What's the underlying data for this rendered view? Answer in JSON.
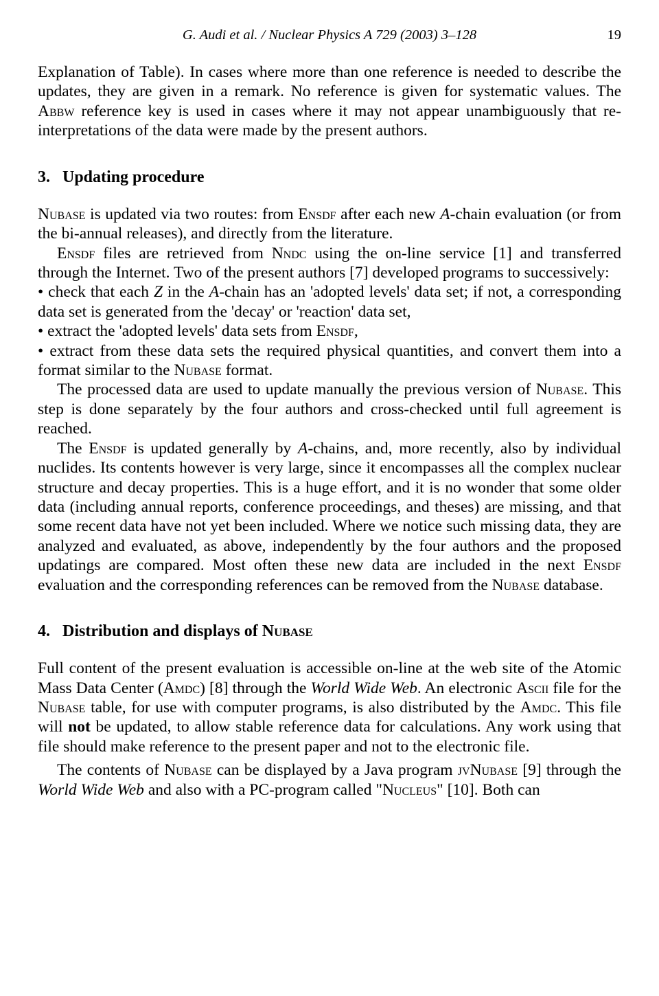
{
  "header": {
    "citation": "G. Audi et al. / Nuclear Physics A 729 (2003) 3–128",
    "page_number": "19"
  },
  "para1_a": "Explanation of Table). In cases where more than one reference is needed to describe the updates, they are given in a remark. No reference is given for systematic values. The ",
  "para1_abbw": "Abbw",
  "para1_b": " reference key is used in cases where it may not appear unambiguously that re-interpretations of the data were made by the present authors.",
  "section3": {
    "number": "3.",
    "title": "Updating procedure"
  },
  "p3a_nubase": "Nubase",
  "p3a_1": " is updated via two routes: from ",
  "p3a_ensdf": "Ensdf",
  "p3a_2": " after each new ",
  "p3a_A": "A",
  "p3a_3": "-chain evaluation (or from the bi-annual releases), and directly from the literature.",
  "p3b_ensdf": "Ensdf",
  "p3b_1": " files are retrieved from ",
  "p3b_nndc": "Nndc",
  "p3b_2": " using the on-line service [1] and transferred through the Internet. Two of the present authors [7] developed programs to successively:",
  "bullet1_a": "• check that each ",
  "bullet1_Z": "Z",
  "bullet1_b": " in the ",
  "bullet1_A": "A",
  "bullet1_c": "-chain has an 'adopted levels' data set; if not, a corresponding data set is generated from the 'decay' or 'reaction' data set,",
  "bullet2_a": "• extract the 'adopted levels' data sets from ",
  "bullet2_ensdf": "Ensdf",
  "bullet2_b": ",",
  "bullet3_a": "• extract from these data sets the required physical quantities, and convert them into a format similar to the ",
  "bullet3_nubase": "Nubase",
  "bullet3_b": " format.",
  "p3c_1": "The processed data are used to update manually the previous version of ",
  "p3c_nubase": "Nubase",
  "p3c_2": ". This step is done separately by the four authors and cross-checked until full agreement is reached.",
  "p3d_1": "The ",
  "p3d_ensdf": "Ensdf",
  "p3d_2": " is updated generally by ",
  "p3d_A": "A",
  "p3d_3": "-chains, and, more recently, also by individual nuclides. Its contents however is very large, since it encompasses all the complex nuclear structure and decay properties. This is a huge effort, and it is no wonder that some older data (including annual reports, conference proceedings, and theses) are missing, and that some recent data have not yet been included. Where we notice such missing data, they are analyzed and evaluated, as above, independently by the four authors and the proposed updatings are compared. Most often these new data are included in the next ",
  "p3d_ensdf2": "Ensdf",
  "p3d_4": " evaluation and the corresponding references can be removed from the ",
  "p3d_nubase": "Nubase",
  "p3d_5": " database.",
  "section4": {
    "number": "4.",
    "title_a": "Distribution and displays of ",
    "title_nubase": "Nubase"
  },
  "p4a_1": "Full content of the present evaluation is accessible on-line at the web site of the Atomic Mass Data Center (",
  "p4a_amdc": "Amdc",
  "p4a_2": ") [8] through the ",
  "p4a_www": "World Wide Web",
  "p4a_3": ". An electronic ",
  "p4a_ascii": "Ascii",
  "p4a_4": " file for the ",
  "p4a_nubase": "Nubase",
  "p4a_5": " table, for use with computer programs, is also distributed by the ",
  "p4a_amdc2": "Amdc",
  "p4a_6": ". This file will ",
  "p4a_not": "not",
  "p4a_7": " be updated, to allow stable reference data for calculations. Any work using that file should make reference to the present paper and not to the electronic file.",
  "p4b_1": "The contents of ",
  "p4b_nubase": "Nubase",
  "p4b_2": " can be displayed by a Java program ",
  "p4b_jvnubase": "jvNubase",
  "p4b_3": " [9] through the ",
  "p4b_www": "World Wide Web",
  "p4b_4": " and also with a PC-program called \"",
  "p4b_nucleus": "Nucleus",
  "p4b_5": "\" [10]. Both can"
}
